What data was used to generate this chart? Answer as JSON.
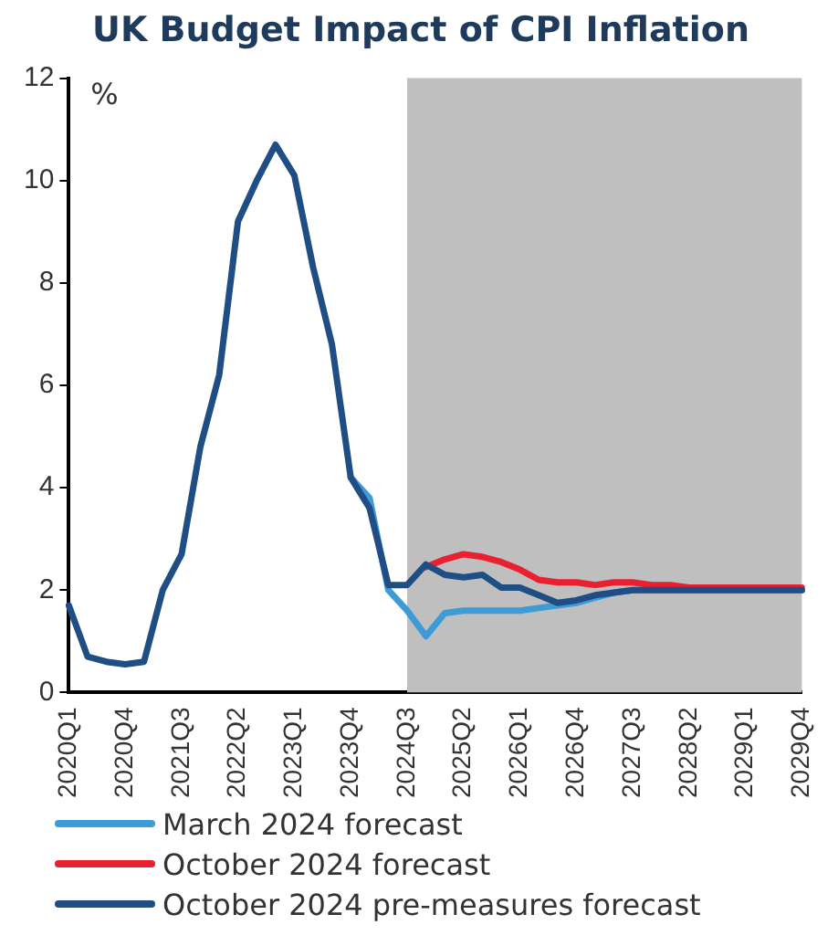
{
  "chart_data": {
    "type": "line",
    "title": "UK Budget Impact of CPI Inflation",
    "ylabel": "%",
    "categories": [
      "2020Q1",
      null,
      null,
      "2020Q4",
      null,
      null,
      "2021Q3",
      null,
      null,
      "2022Q2",
      null,
      null,
      "2023Q1",
      null,
      null,
      "2023Q4",
      null,
      null,
      "2024Q3",
      null,
      null,
      "2025Q2",
      null,
      null,
      "2026Q1",
      null,
      null,
      "2026Q4",
      null,
      null,
      "2027Q3",
      null,
      null,
      "2028Q2",
      null,
      null,
      "2029Q1",
      null,
      null,
      "2029Q4"
    ],
    "series": [
      {
        "name": "March 2024 forecast",
        "color": "#3d9bd6",
        "values": [
          null,
          null,
          null,
          null,
          null,
          null,
          null,
          null,
          null,
          null,
          null,
          null,
          null,
          null,
          null,
          4.2,
          3.8,
          2.0,
          1.6,
          1.1,
          1.55,
          1.6,
          1.6,
          1.6,
          1.6,
          1.65,
          1.7,
          1.75,
          1.85,
          1.95,
          2.0,
          2.0,
          2.0,
          2.0,
          2.0,
          2.0,
          2.0,
          2.0,
          2.0,
          2.0
        ]
      },
      {
        "name": "October 2024 forecast",
        "color": "#e8202f",
        "values": [
          null,
          null,
          null,
          null,
          null,
          null,
          null,
          null,
          null,
          null,
          null,
          null,
          null,
          null,
          null,
          null,
          null,
          null,
          null,
          2.45,
          2.6,
          2.7,
          2.65,
          2.55,
          2.4,
          2.2,
          2.15,
          2.15,
          2.1,
          2.15,
          2.15,
          2.1,
          2.1,
          2.05,
          2.05,
          2.05,
          2.05,
          2.05,
          2.05,
          2.05
        ]
      },
      {
        "name": "October 2024 pre-measures forecast",
        "color": "#1f4e85",
        "values": [
          1.7,
          0.7,
          0.6,
          0.55,
          0.6,
          2.0,
          2.7,
          4.8,
          6.2,
          9.2,
          10.0,
          10.7,
          10.1,
          8.3,
          6.8,
          4.2,
          3.6,
          2.1,
          2.1,
          2.5,
          2.3,
          2.25,
          2.3,
          2.05,
          2.05,
          1.9,
          1.75,
          1.8,
          1.9,
          1.95,
          2.0,
          2.0,
          2.0,
          2.0,
          2.0,
          2.0,
          2.0,
          2.0,
          2.0,
          2.0
        ]
      }
    ],
    "ylim": [
      0,
      12
    ],
    "yticks": [
      0,
      2,
      4,
      6,
      8,
      10,
      12
    ],
    "grid": false,
    "legend": "bottom",
    "marker": "none",
    "line_style": "solid",
    "bands": [
      {
        "axis": "x",
        "from": "2024Q3",
        "to": "2029Q4",
        "color": "#bfbfbf"
      }
    ]
  }
}
